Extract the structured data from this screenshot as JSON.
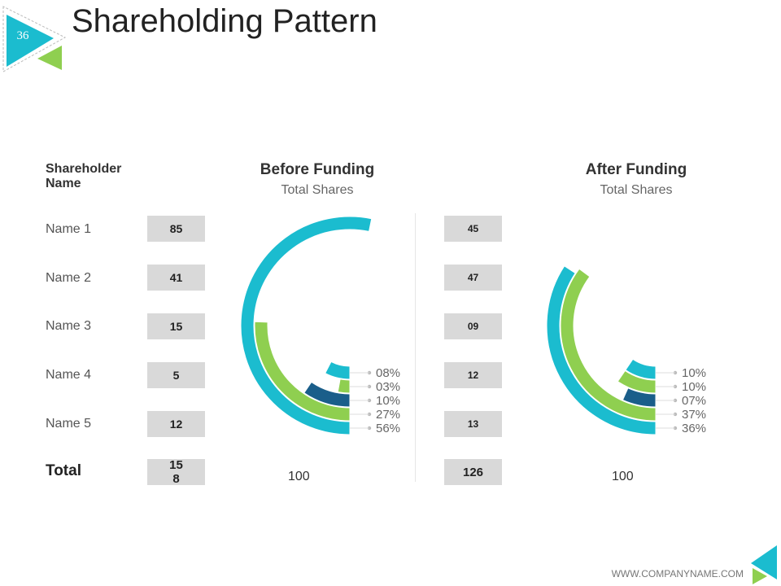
{
  "page": {
    "title": "Shareholding Pattern",
    "page_number": "36",
    "footer_url": "WWW.COMPANYNAME.COM"
  },
  "colors": {
    "teal": "#1bbccf",
    "green": "#8fcf50",
    "navy": "#1a5e8a",
    "track": "#ffffff"
  },
  "table": {
    "header": "Shareholder Name",
    "header_line1": "Shareholder",
    "header_line2": "Name",
    "names": [
      "Name 1",
      "Name 2",
      "Name 3",
      "Name 4",
      "Name 5"
    ],
    "total_label": "Total",
    "before_values": [
      "85",
      "41",
      "15",
      "5",
      "12"
    ],
    "before_total_line1": "15",
    "before_total_line2": "8",
    "after_values": [
      "45",
      "47",
      "09",
      "12",
      "13"
    ],
    "after_total": "126"
  },
  "chart_data": [
    {
      "type": "radial-bar",
      "title": "Before Funding",
      "subtitle": "Total Shares",
      "max_label": "100",
      "rings": [
        {
          "label": "08%",
          "value": 8,
          "color": "teal"
        },
        {
          "label": "03%",
          "value": 3,
          "color": "green"
        },
        {
          "label": "10%",
          "value": 10,
          "color": "navy"
        },
        {
          "label": "27%",
          "value": 27,
          "color": "green"
        },
        {
          "label": "56%",
          "value": 56,
          "color": "teal"
        }
      ]
    },
    {
      "type": "radial-bar",
      "title": "After Funding",
      "subtitle": "Total Shares",
      "max_label": "100",
      "rings": [
        {
          "label": "10%",
          "value": 10,
          "color": "teal"
        },
        {
          "label": "10%",
          "value": 10,
          "color": "green"
        },
        {
          "label": "07%",
          "value": 7,
          "color": "navy"
        },
        {
          "label": "37%",
          "value": 37,
          "color": "green"
        },
        {
          "label": "36%",
          "value": 36,
          "color": "teal"
        }
      ]
    }
  ]
}
